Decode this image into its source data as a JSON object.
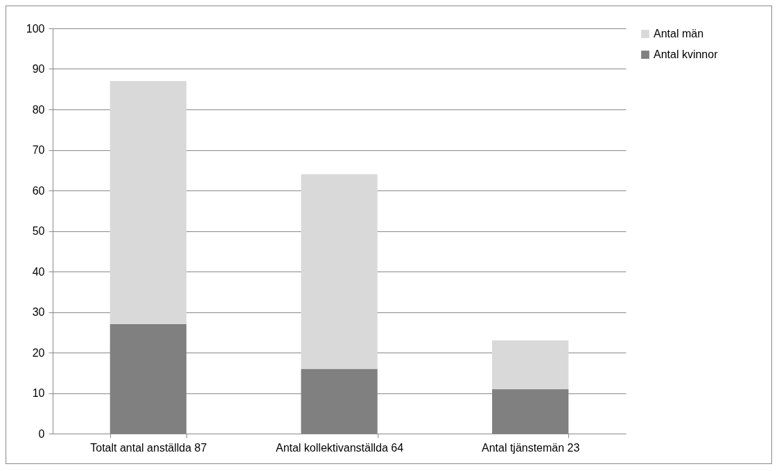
{
  "chart_data": {
    "type": "bar",
    "stacked": true,
    "categories": [
      "Totalt antal anställda 87",
      "Antal kollektivanställda 64",
      "Antal tjänstemän 23"
    ],
    "series": [
      {
        "name": "Antal kvinnor",
        "color": "#808080",
        "values": [
          27,
          16,
          11
        ]
      },
      {
        "name": "Antal män",
        "color": "#d9d9d9",
        "values": [
          60,
          48,
          12
        ]
      }
    ],
    "ylim": [
      0,
      100
    ],
    "yticks": [
      0,
      10,
      20,
      30,
      40,
      50,
      60,
      70,
      80,
      90,
      100
    ],
    "grid": "y",
    "legend": "right"
  }
}
